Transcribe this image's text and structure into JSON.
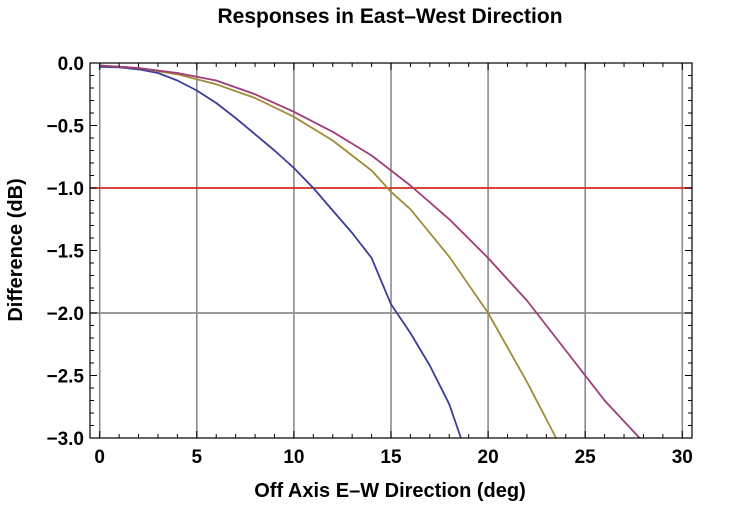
{
  "chart_data": {
    "type": "line",
    "title": "Responses in East–West Direction",
    "xlabel": "Off Axis E–W Direction (deg)",
    "ylabel": "Difference (dB)",
    "xlim": [
      -0.5,
      30.5
    ],
    "ylim": [
      -3.0,
      0.0
    ],
    "x_ticks": [
      0,
      5,
      10,
      15,
      20,
      25,
      30
    ],
    "x_tick_labels": [
      "0",
      "5",
      "10",
      "15",
      "20",
      "25",
      "30"
    ],
    "y_ticks": [
      0.0,
      -0.5,
      -1.0,
      -1.5,
      -2.0,
      -2.5,
      -3.0
    ],
    "y_tick_labels": [
      "0.0",
      "−0.5",
      "−1.0",
      "−1.5",
      "−2.0",
      "−2.5",
      "−3.0"
    ],
    "grid": true,
    "reference_lines": [
      {
        "y": -1.0,
        "color": "#d62a1f"
      },
      {
        "y": -2.0,
        "color": "#8c8c8c"
      }
    ],
    "series": [
      {
        "color": "#3c3c9a",
        "x": [
          0,
          1,
          2,
          3,
          4,
          5,
          6,
          7,
          8,
          9,
          10,
          11,
          12,
          13,
          14,
          15,
          16,
          17,
          18,
          18.6
        ],
        "y": [
          -0.03,
          -0.035,
          -0.05,
          -0.08,
          -0.14,
          -0.22,
          -0.32,
          -0.44,
          -0.57,
          -0.7,
          -0.84,
          -1.0,
          -1.18,
          -1.36,
          -1.56,
          -1.93,
          -2.16,
          -2.42,
          -2.73,
          -3.0
        ]
      },
      {
        "color": "#a08c35",
        "x": [
          0,
          2,
          4,
          6,
          8,
          10,
          12,
          14,
          15,
          16,
          18,
          20,
          22,
          23.5
        ],
        "y": [
          -0.02,
          -0.04,
          -0.09,
          -0.17,
          -0.28,
          -0.43,
          -0.62,
          -0.86,
          -1.03,
          -1.17,
          -1.55,
          -2.0,
          -2.55,
          -3.0
        ]
      },
      {
        "color": "#a03c78",
        "x": [
          0,
          2,
          4,
          6,
          8,
          10,
          12,
          14,
          16,
          18,
          20,
          22,
          24,
          26,
          27.8
        ],
        "y": [
          -0.02,
          -0.04,
          -0.08,
          -0.14,
          -0.25,
          -0.39,
          -0.55,
          -0.74,
          -0.98,
          -1.25,
          -1.56,
          -1.9,
          -2.3,
          -2.7,
          -3.0
        ]
      }
    ]
  }
}
